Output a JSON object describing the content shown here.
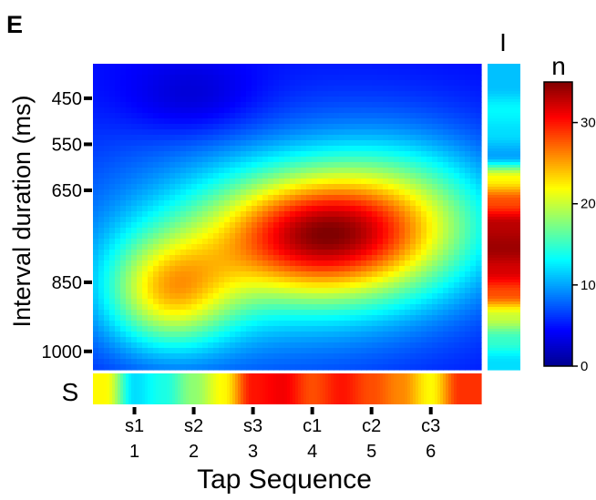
{
  "panel_label": "E",
  "chart_data": {
    "type": "heatmap",
    "xlabel": "Tap Sequence",
    "ylabel": "Interval duration (ms)",
    "x_ticks_top": [
      "s1",
      "s2",
      "s3",
      "c1",
      "c2",
      "c3"
    ],
    "x_ticks_bottom": [
      "1",
      "2",
      "3",
      "4",
      "5",
      "6"
    ],
    "x_values": [
      1,
      2,
      3,
      4,
      5,
      6
    ],
    "y_ticks": [
      "450",
      "550",
      "650",
      "850",
      "1000"
    ],
    "y_tick_values": [
      450,
      550,
      650,
      850,
      1000
    ],
    "interval_axis_max": 1000,
    "xlim": [
      0.3,
      6.85
    ],
    "ylim": [
      375,
      1040
    ],
    "colorbar": {
      "title": "n",
      "ticks": [
        "0",
        "10",
        "20",
        "30"
      ],
      "tick_values": [
        0,
        10,
        20,
        30
      ],
      "range": [
        0,
        35
      ]
    },
    "marginal_interval_label": "I",
    "marginal_sequence_label": "S",
    "peak": {
      "tap": 4,
      "interval_ms": 750,
      "n": 35
    },
    "colorscale": [
      "#00008f",
      "#0000ff",
      "#0080ff",
      "#00ffff",
      "#80ff80",
      "#ffff00",
      "#ff8000",
      "#ff0000",
      "#800000"
    ],
    "marginal_interval": {
      "interval_ms": [
        425,
        475,
        525,
        575,
        625,
        675,
        725,
        775,
        825,
        875,
        925,
        975,
        1025
      ],
      "n": [
        11,
        13,
        12,
        10,
        22,
        28,
        33,
        34,
        32,
        28,
        20,
        15,
        12
      ]
    },
    "marginal_sequence": {
      "tap": [
        0.5,
        1,
        1.5,
        2,
        2.5,
        3,
        3.5,
        4,
        4.5,
        5,
        5.5,
        6,
        6.5
      ],
      "n": [
        22,
        12,
        14,
        18,
        22,
        30,
        31,
        28,
        30,
        28,
        26,
        22,
        29
      ]
    }
  }
}
